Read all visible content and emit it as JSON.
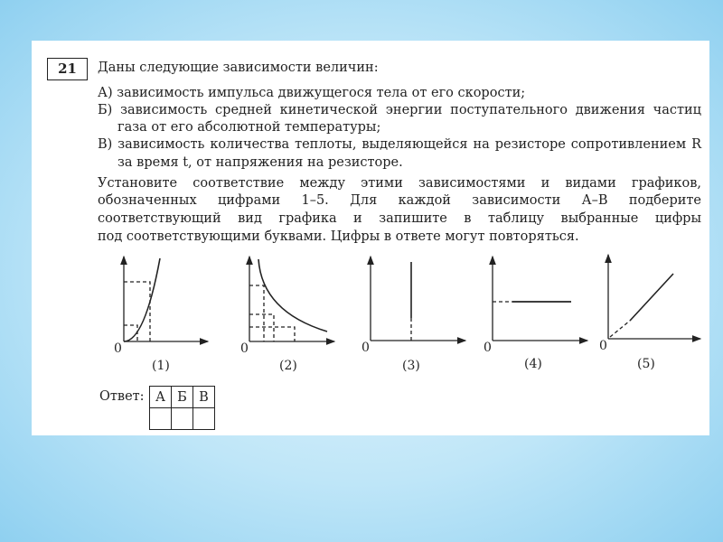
{
  "task_number": "21",
  "intro": "Даны следующие зависимости величин:",
  "items": [
    {
      "line1": "А) зависимость импульса движущегося тела от его скорости;"
    },
    {
      "line1": "Б) зависимость средней кинетической энергии поступательного движения частиц",
      "line2": "газа от его абсолютной температуры;"
    },
    {
      "line1": "В) зависимость количества теплоты, выделяющейся на резисторе сопротивлением R",
      "line2": "за время t, от напряжения на резисторе."
    }
  ],
  "instruction": [
    "Установите соответствие между этими зависимостями и видами графиков,",
    "обозначенных цифрами 1–5. Для каждой зависимости А–В подберите",
    "соответствующий вид графика и запишите в таблицу выбранные цифры",
    "под соответствующими буквами. Цифры в ответе могут повторяться."
  ],
  "graphs": [
    {
      "label": "(1)",
      "origin": "0",
      "shape": "parabola"
    },
    {
      "label": "(2)",
      "origin": "0",
      "shape": "hyperbola"
    },
    {
      "label": "(3)",
      "origin": "0",
      "shape": "vertical line"
    },
    {
      "label": "(4)",
      "origin": "0",
      "shape": "horizontal line"
    },
    {
      "label": "(5)",
      "origin": "0",
      "shape": "proportional line"
    }
  ],
  "answer": {
    "label": "Ответ:",
    "columns": [
      "А",
      "Б",
      "В"
    ],
    "values": [
      "",
      "",
      ""
    ]
  }
}
